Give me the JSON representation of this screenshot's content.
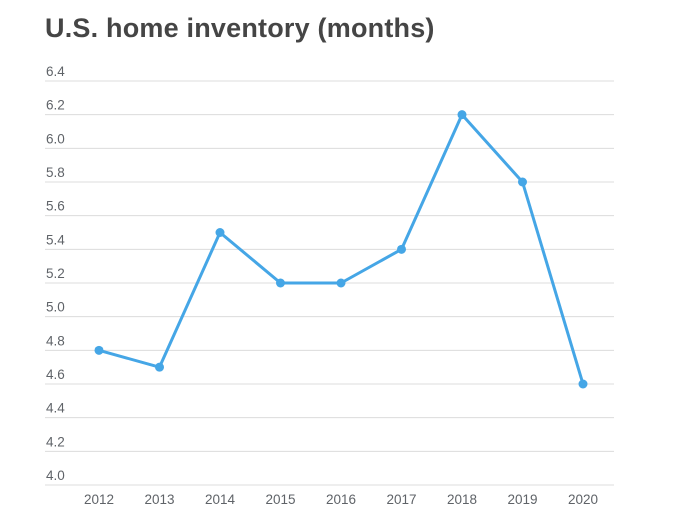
{
  "page": {
    "background": "#ffffff"
  },
  "chart_data": {
    "type": "line",
    "title": "U.S. home inventory (months)",
    "xlabel": "",
    "ylabel": "",
    "categories": [
      "2012",
      "2013",
      "2014",
      "2015",
      "2016",
      "2017",
      "2018",
      "2019",
      "2020"
    ],
    "values": [
      4.8,
      4.7,
      5.5,
      5.2,
      5.2,
      5.4,
      6.2,
      5.8,
      4.6
    ],
    "ylim": [
      4.0,
      6.4
    ],
    "ytick_step": 0.2,
    "yticks": [
      "4.0",
      "4.2",
      "4.4",
      "4.6",
      "4.8",
      "5.0",
      "5.2",
      "5.4",
      "5.6",
      "5.8",
      "6.0",
      "6.2",
      "6.4"
    ],
    "grid": true,
    "legend": "none",
    "marker": "circle",
    "colors": {
      "line": "#45a6e6",
      "grid": "#dcdcdc",
      "title": "#454545",
      "tick_label": "#5f6368"
    }
  }
}
